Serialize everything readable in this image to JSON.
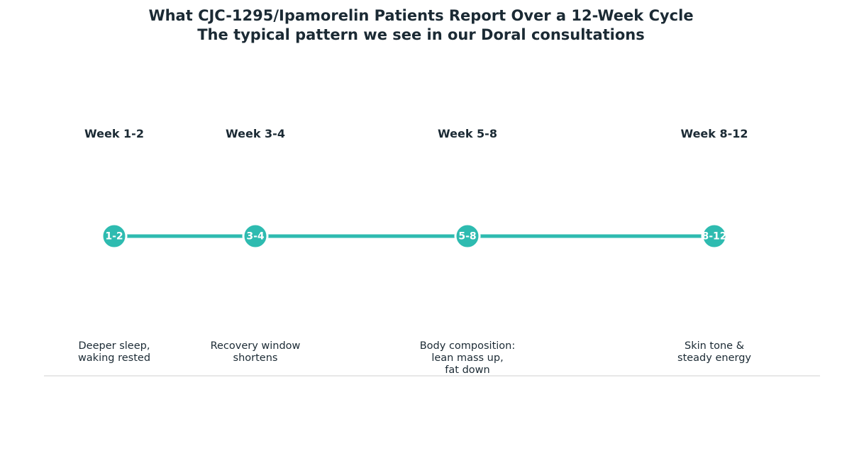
{
  "title": {
    "line1": "What CJC-1295/Ipamorelin Patients Report Over a 12-Week Cycle",
    "line2": "The typical pattern we see in our Doral consultations"
  },
  "colors": {
    "accent": "#2ebbb0",
    "text": "#1b2a34",
    "divider": "#d9d9d9",
    "marker_text": "#ffffff"
  },
  "milestones": [
    {
      "week": "Week 1-2",
      "marker": "1-2",
      "description": "Deeper sleep,\nwaking rested"
    },
    {
      "week": "Week 3-4",
      "marker": "3-4",
      "description": "Recovery window\nshortens"
    },
    {
      "week": "Week 5-8",
      "marker": "5-8",
      "description": "Body composition:\nlean mass up,\nfat down"
    },
    {
      "week": "Week 8-12",
      "marker": "8-12",
      "description": "Skin tone &\nsteady energy"
    }
  ]
}
